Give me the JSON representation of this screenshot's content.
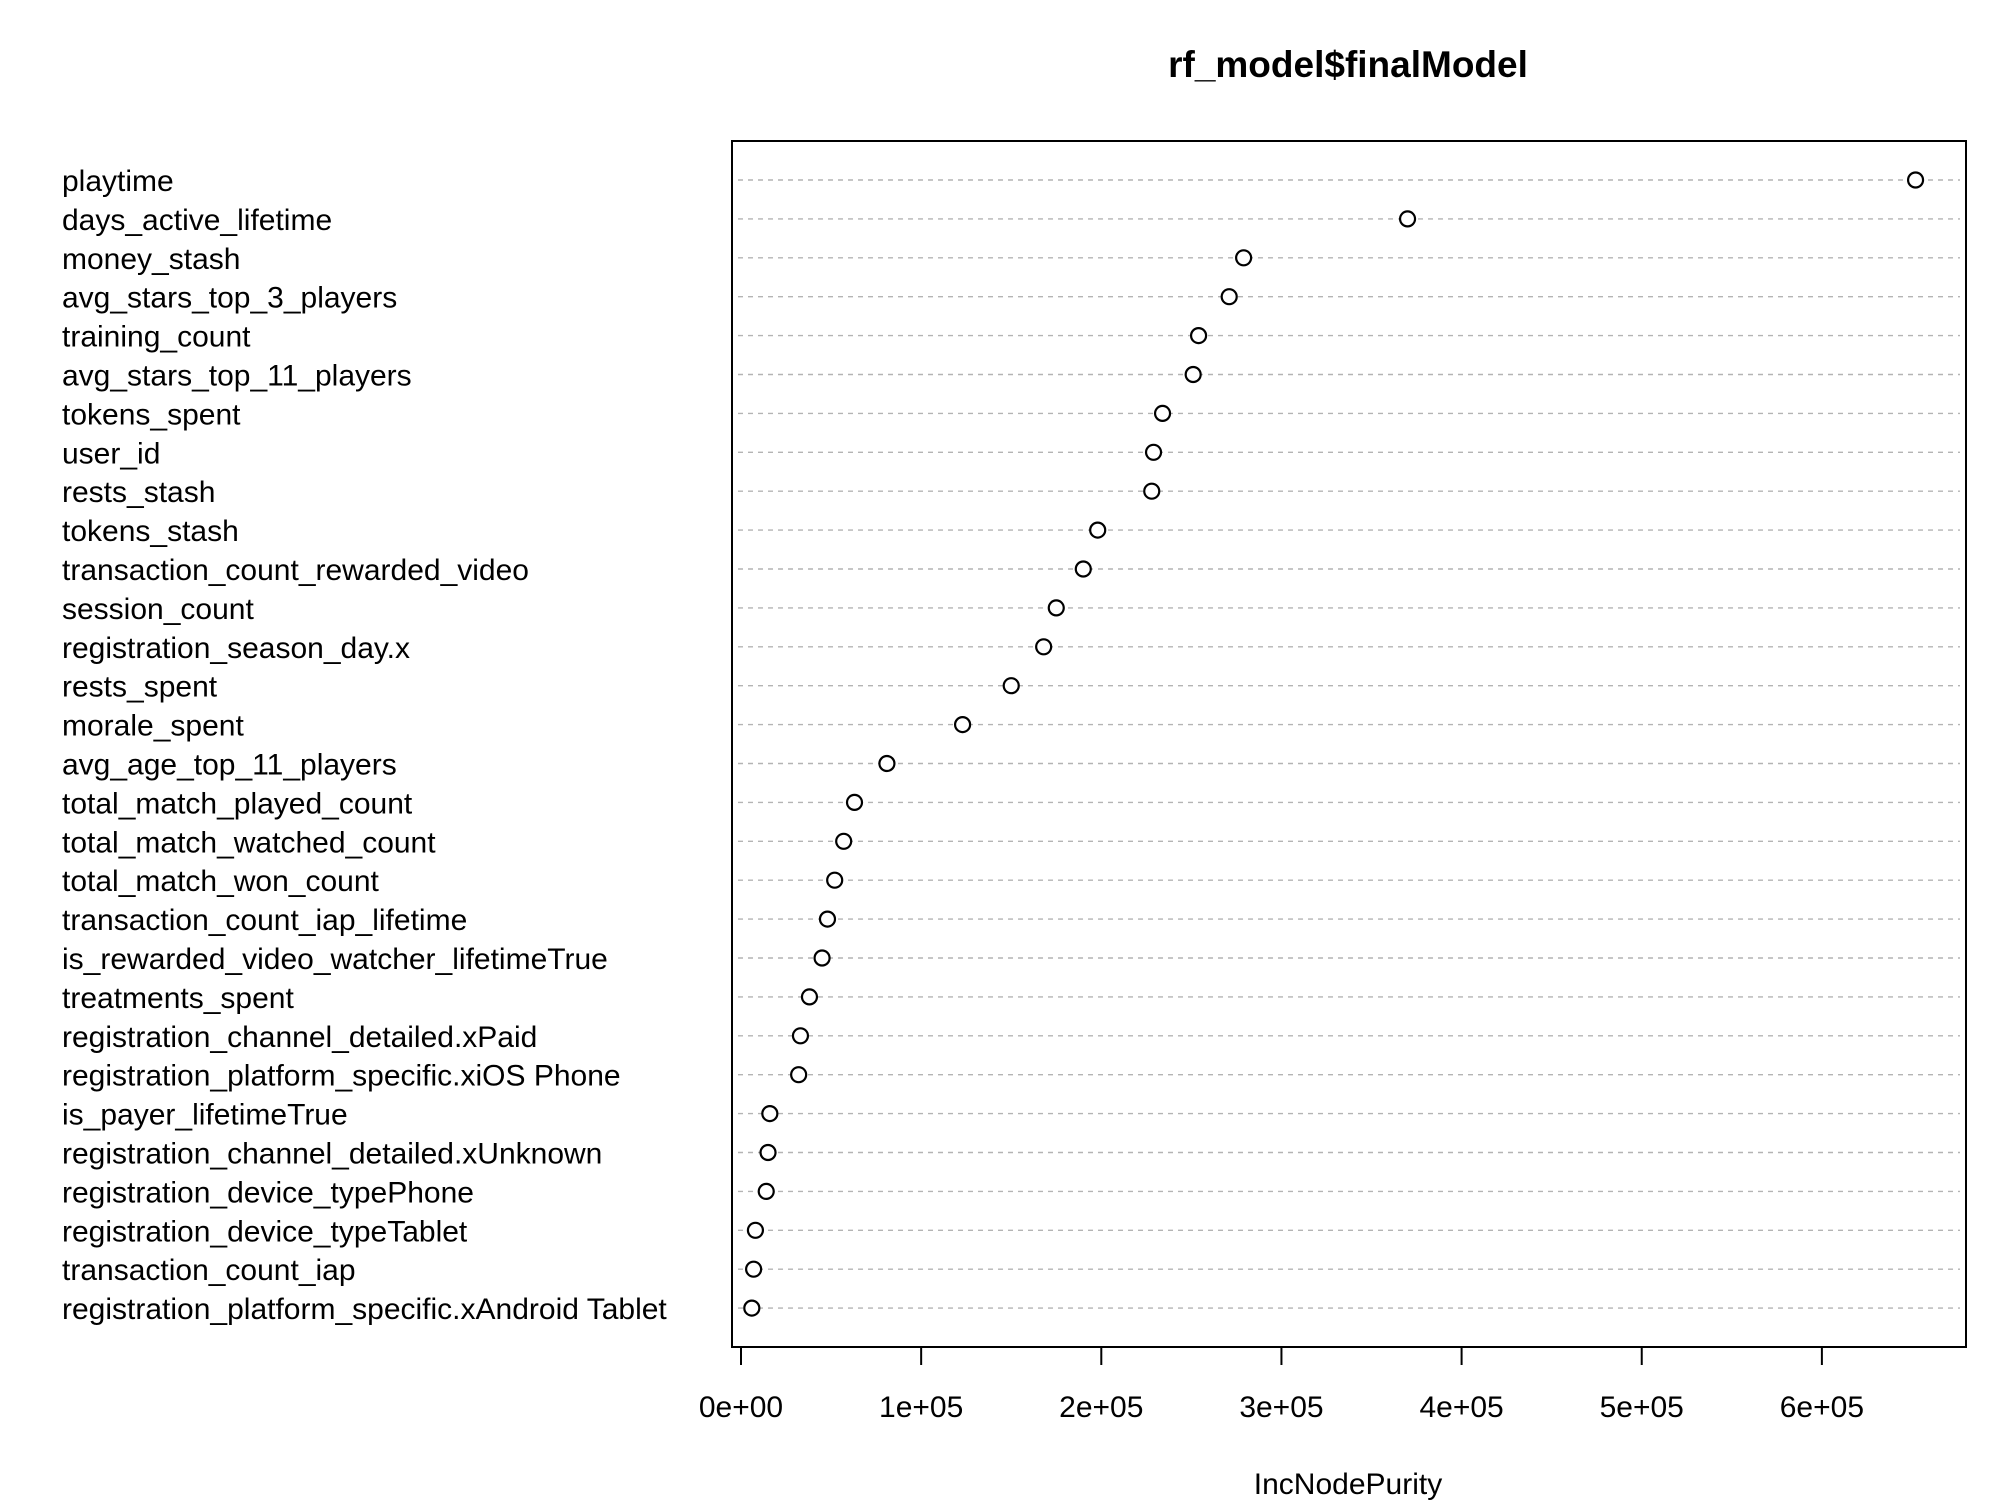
{
  "chart_data": {
    "type": "scatter",
    "title": "rf_model$finalModel",
    "xlabel": "IncNodePurity",
    "ylabel": "",
    "xlim": [
      -5000,
      680000
    ],
    "xticks": [
      0,
      100000,
      200000,
      300000,
      400000,
      500000,
      600000
    ],
    "xtick_labels": [
      "0e+00",
      "1e+05",
      "2e+05",
      "3e+05",
      "4e+05",
      "5e+05",
      "6e+05"
    ],
    "grid": "horizontal-dotted",
    "categories": [
      "playtime",
      "days_active_lifetime",
      "money_stash",
      "avg_stars_top_3_players",
      "training_count",
      "avg_stars_top_11_players",
      "tokens_spent",
      "user_id",
      "rests_stash",
      "tokens_stash",
      "transaction_count_rewarded_video",
      "session_count",
      "registration_season_day.x",
      "rests_spent",
      "morale_spent",
      "avg_age_top_11_players",
      "total_match_played_count",
      "total_match_watched_count",
      "total_match_won_count",
      "transaction_count_iap_lifetime",
      "is_rewarded_video_watcher_lifetimeTrue",
      "treatments_spent",
      "registration_channel_detailed.xPaid",
      "registration_platform_specific.xiOS Phone",
      "is_payer_lifetimeTrue",
      "registration_channel_detailed.xUnknown",
      "registration_device_typePhone",
      "registration_device_typeTablet",
      "transaction_count_iap",
      "registration_platform_specific.xAndroid Tablet"
    ],
    "values": [
      652000,
      370000,
      279000,
      271000,
      254000,
      251000,
      234000,
      229000,
      228000,
      198000,
      190000,
      175000,
      168000,
      150000,
      123000,
      81000,
      63000,
      57000,
      52000,
      48000,
      45000,
      38000,
      33000,
      32000,
      16000,
      15000,
      14000,
      8000,
      7000,
      6000
    ]
  }
}
